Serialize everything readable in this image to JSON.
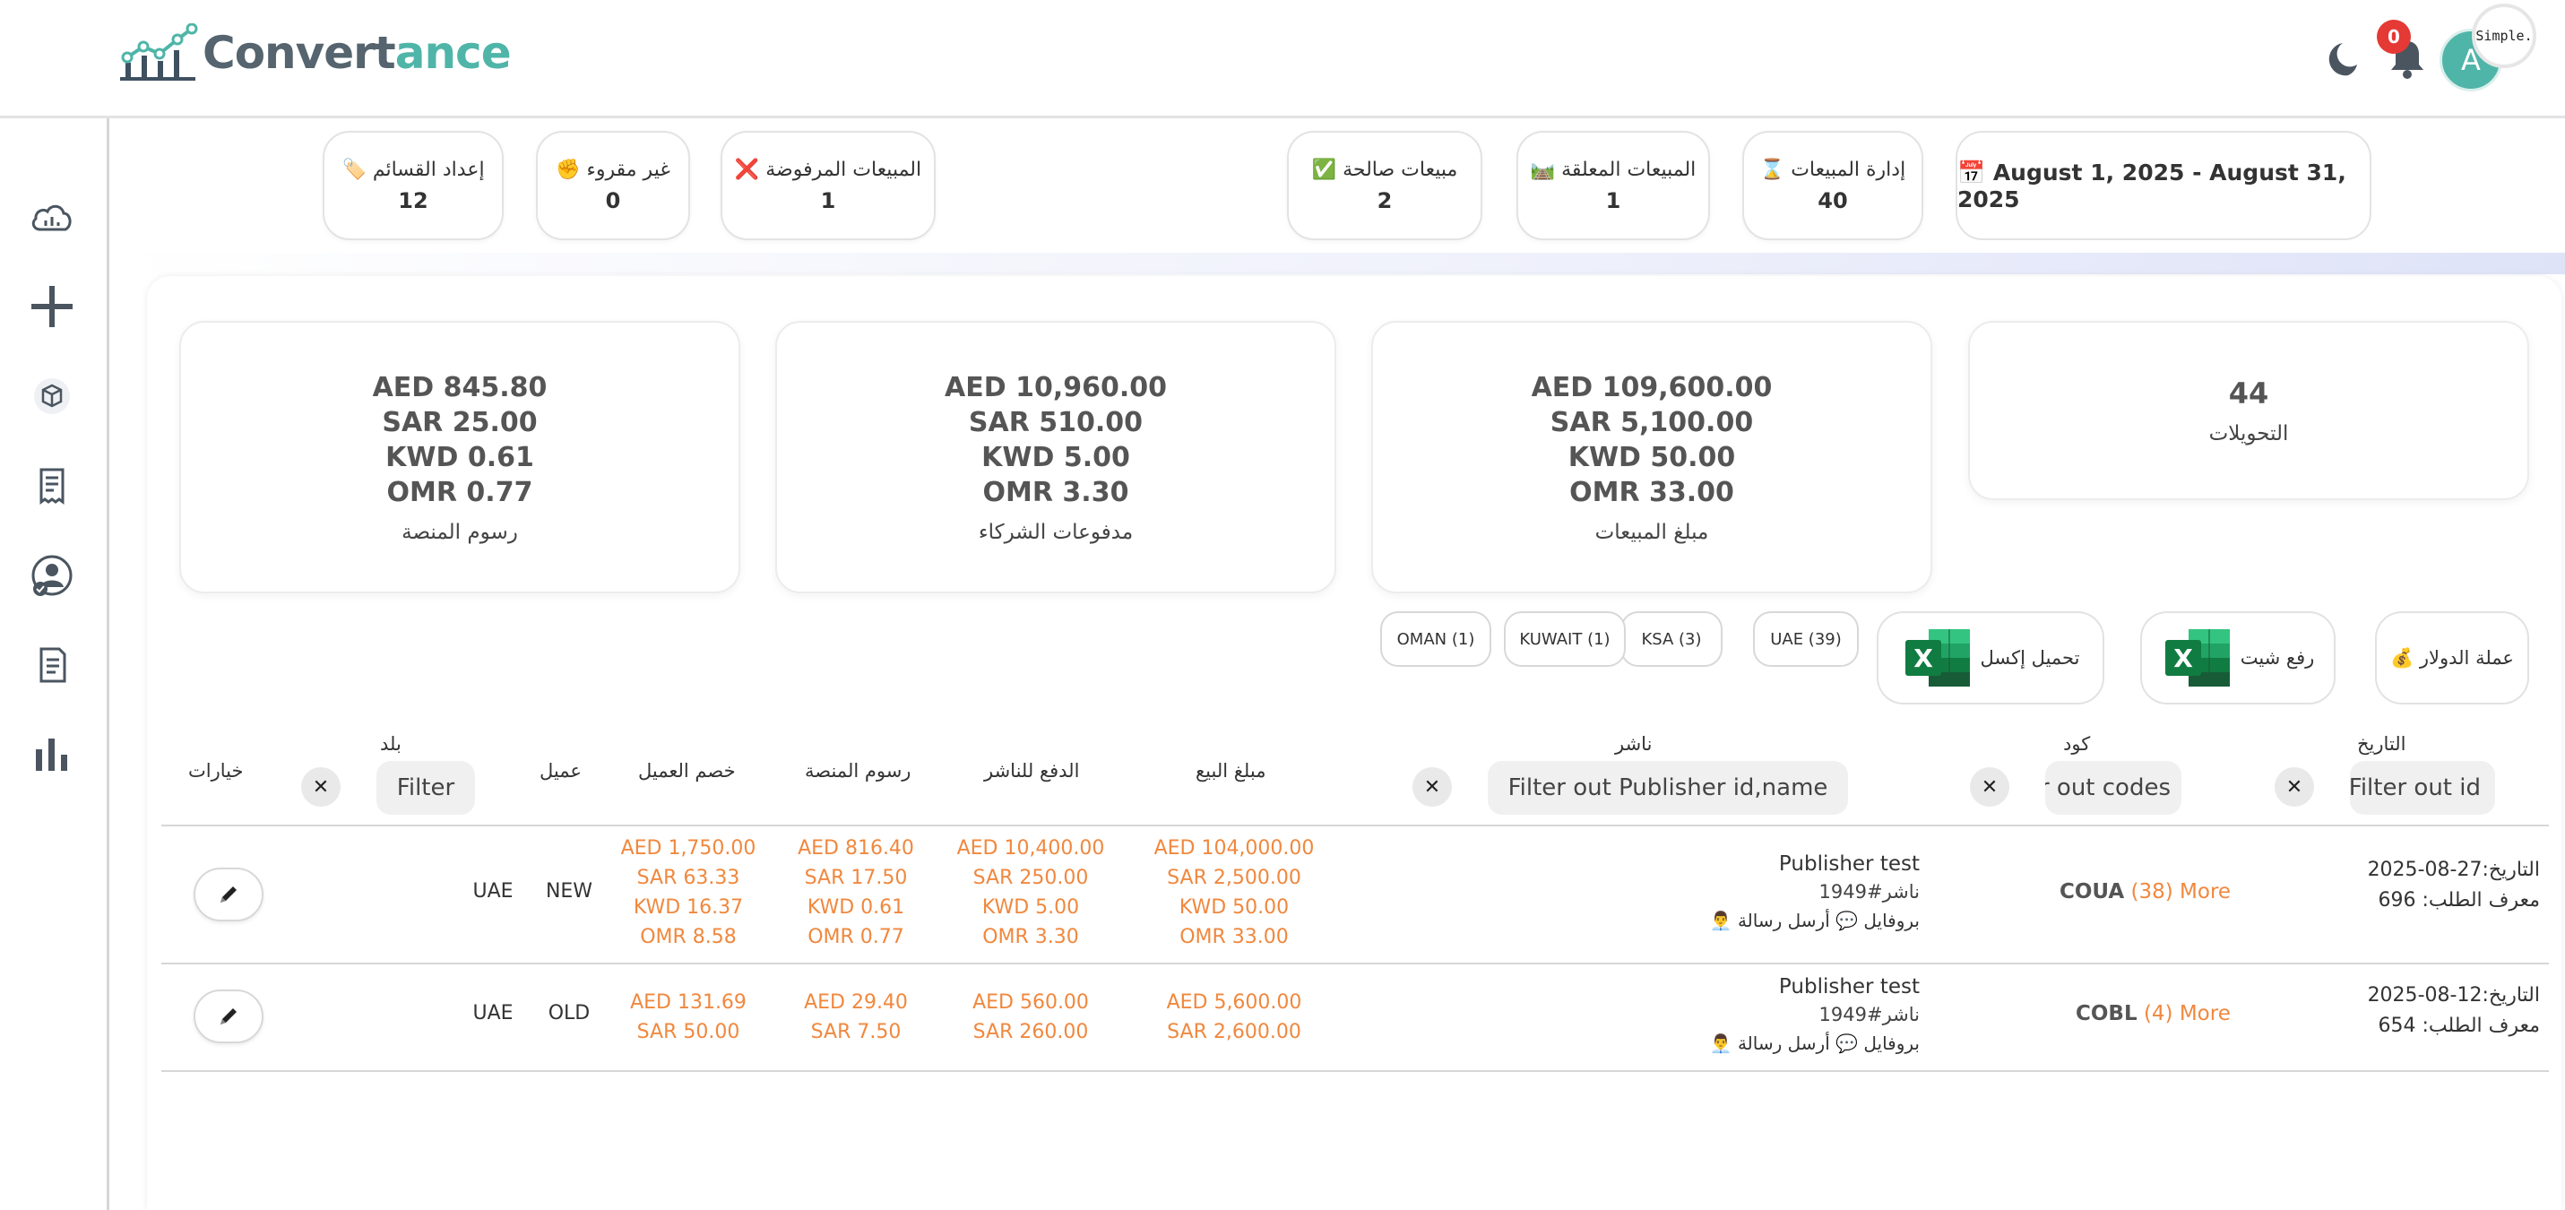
{
  "app": {
    "logo_part1": "Convert",
    "logo_part2": "ance",
    "notification_count": "0",
    "avatar_initial": "A",
    "simple_label": "Simple."
  },
  "sidebar": {
    "items": [
      {
        "icon": "cloud-icon"
      },
      {
        "icon": "plus-icon"
      },
      {
        "icon": "box-icon"
      },
      {
        "icon": "receipt-icon"
      },
      {
        "icon": "user-check-icon"
      },
      {
        "icon": "invoice-icon"
      },
      {
        "icon": "bar-chart-icon"
      }
    ]
  },
  "stats": {
    "date_range": "📅 August 1, 2025 - August 31, 2025",
    "sales_management": {
      "label": "⌛ إدارة المبيعات",
      "value": "40"
    },
    "pending_sales": {
      "label": "🛤️ المبيعات المعلقة",
      "value": "1"
    },
    "valid_sales": {
      "label": "✅ مبيعات صالحة",
      "value": "2"
    },
    "rejected_sales": {
      "label": "❌ المبيعات المرفوضة",
      "value": "1"
    },
    "unread": {
      "label": "✊ غير مقروء",
      "value": "0"
    },
    "lists_prep": {
      "label": "🏷️ إعداد القسائم",
      "value": "12"
    }
  },
  "cards": {
    "conversions": {
      "value": "44",
      "title": "التحويلات"
    },
    "sales_amount": {
      "lines": [
        "AED 109,600.00",
        "SAR 5,100.00",
        "KWD 50.00",
        "OMR 33.00"
      ],
      "title": "مبلغ المبيعات"
    },
    "partner_payments": {
      "lines": [
        "AED 10,960.00",
        "SAR 510.00",
        "KWD 5.00",
        "OMR 3.30"
      ],
      "title": "مدفوعات الشركاء"
    },
    "platform_fees": {
      "lines": [
        "AED 845.80",
        "SAR 25.00",
        "KWD 0.61",
        "OMR 0.77"
      ],
      "title": "رسوم المنصة"
    }
  },
  "actions": {
    "usd_currency": "💰 عملة الدولار",
    "upload_sheet": "رفع شيت",
    "download_excel": "تحميل إكسل",
    "countries": [
      "UAE (39)",
      "KSA (3)",
      "KUWAIT (1)",
      "OMAN (1)"
    ]
  },
  "table": {
    "headers": {
      "date": "التاريخ",
      "code": "كود",
      "publisher": "ناشر",
      "sale_amount": "مبلغ البيع",
      "publisher_payment": "الدفع للناشر",
      "platform_fee": "رسوم المنصة",
      "customer_discount": "خصم العميل",
      "customer": "عميل",
      "country": "بلد",
      "options": "خيارات"
    },
    "filters": {
      "date_placeholder": "Filter out id",
      "code_placeholder": "Filter out codes",
      "publisher_placeholder": "Filter out Publisher id,name",
      "country_placeholder": "Filter"
    },
    "rows": [
      {
        "date_line": "التاريخ:27-08-2025",
        "order_line": "معرف الطلب: 696",
        "code": "COUA",
        "more": "(38) More",
        "publisher_name": "Publisher test",
        "publisher_id": "ناشر#1949",
        "publisher_links": "👨‍💼 بروفايل 💬 أرسل رسالة",
        "sale_amount": [
          "AED 104,000.00",
          "SAR 2,500.00",
          "KWD 50.00",
          "OMR 33.00"
        ],
        "publisher_payment": [
          "AED 10,400.00",
          "SAR 250.00",
          "KWD 5.00",
          "OMR 3.30"
        ],
        "platform_fee": [
          "AED 816.40",
          "SAR 17.50",
          "KWD 0.61",
          "OMR 0.77"
        ],
        "customer_discount": [
          "AED 1,750.00",
          "SAR 63.33",
          "KWD 16.37",
          "OMR 8.58"
        ],
        "customer": "NEW",
        "country": "UAE"
      },
      {
        "date_line": "التاريخ:12-08-2025",
        "order_line": "معرف الطلب: 654",
        "code": "COBL",
        "more": "(4) More",
        "publisher_name": "Publisher test",
        "publisher_id": "ناشر#1949",
        "publisher_links": "👨‍💼 بروفايل 💬 أرسل رسالة",
        "sale_amount": [
          "AED 5,600.00",
          "SAR 2,600.00"
        ],
        "publisher_payment": [
          "AED 560.00",
          "SAR 260.00"
        ],
        "platform_fee": [
          "AED 29.40",
          "SAR 7.50"
        ],
        "customer_discount": [
          "AED 131.69",
          "SAR 50.00"
        ],
        "customer": "OLD",
        "country": "UAE"
      }
    ]
  }
}
